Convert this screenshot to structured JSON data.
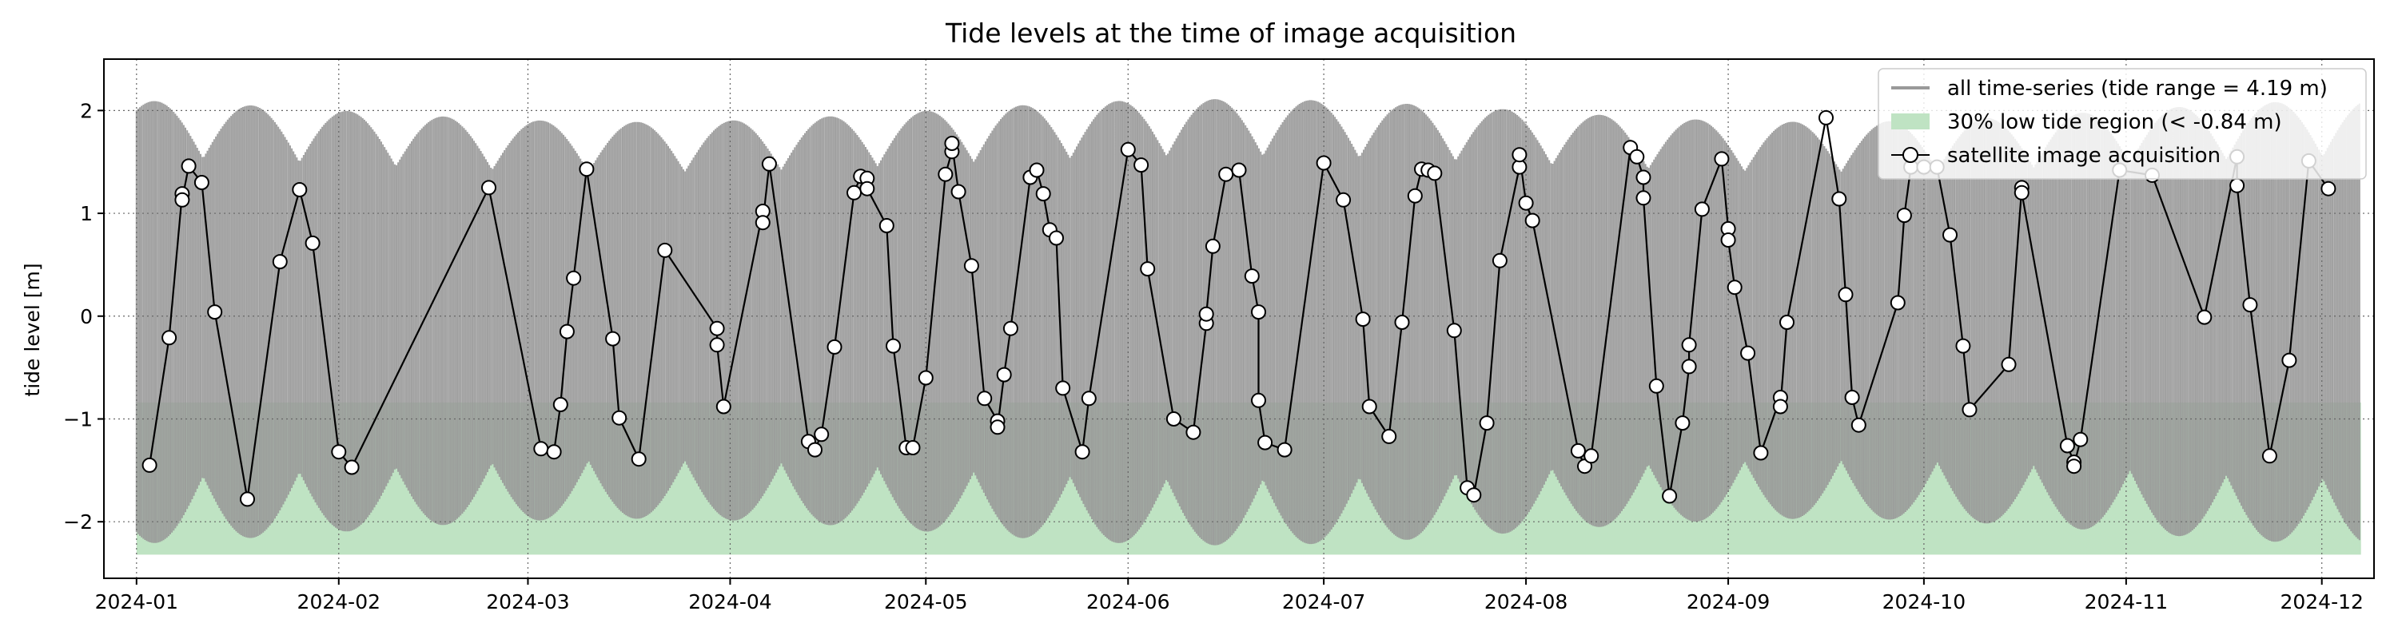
{
  "chart_data": {
    "type": "line",
    "title": "Tide levels at the time of image acquisition",
    "xlabel": "",
    "ylabel": "tide level [m]",
    "xlim": [
      "2023-12-27",
      "2024-12-09"
    ],
    "ylim": [
      -2.55,
      2.5
    ],
    "yticks": [
      -2,
      -1,
      0,
      1,
      2
    ],
    "xticks": [
      "2024-01",
      "2024-02",
      "2024-03",
      "2024-04",
      "2024-05",
      "2024-06",
      "2024-07",
      "2024-08",
      "2024-09",
      "2024-10",
      "2024-11",
      "2024-12"
    ],
    "grid": true,
    "grid_style": "dotted",
    "legend_position": "top-right",
    "legend": {
      "timeseries_label": "all time-series (tide range = 4.19 m)",
      "low_region_label": "30% low tide region (< -0.84 m)",
      "acquisition_label": "satellite image acquisition"
    },
    "low_tide_region": {
      "lower": -2.32,
      "upper": -0.84
    },
    "colors": {
      "timeseries": "#999999",
      "low_region": "#bfe3c3",
      "acquisition_line": "#000000",
      "marker_fill": "#ffffff"
    },
    "series": [
      {
        "name": "satellite image acquisition",
        "points": [
          [
            "2024-01-03",
            -1.45
          ],
          [
            "2024-01-06",
            -0.21
          ],
          [
            "2024-01-08",
            1.19
          ],
          [
            "2024-01-08",
            1.13
          ],
          [
            "2024-01-09",
            1.46
          ],
          [
            "2024-01-11",
            1.3
          ],
          [
            "2024-01-13",
            0.04
          ],
          [
            "2024-01-18",
            -1.78
          ],
          [
            "2024-01-23",
            0.53
          ],
          [
            "2024-01-26",
            1.23
          ],
          [
            "2024-01-28",
            0.71
          ],
          [
            "2024-02-01",
            -1.32
          ],
          [
            "2024-02-03",
            -1.47
          ],
          [
            "2024-02-24",
            1.25
          ],
          [
            "2024-03-03",
            -1.29
          ],
          [
            "2024-03-05",
            -1.32
          ],
          [
            "2024-03-06",
            -0.86
          ],
          [
            "2024-03-07",
            -0.15
          ],
          [
            "2024-03-08",
            0.37
          ],
          [
            "2024-03-10",
            1.43
          ],
          [
            "2024-03-14",
            -0.22
          ],
          [
            "2024-03-15",
            -0.99
          ],
          [
            "2024-03-18",
            -1.39
          ],
          [
            "2024-03-22",
            0.64
          ],
          [
            "2024-03-30",
            -0.12
          ],
          [
            "2024-03-30",
            -0.28
          ],
          [
            "2024-03-31",
            -0.88
          ],
          [
            "2024-04-06",
            1.02
          ],
          [
            "2024-04-06",
            0.91
          ],
          [
            "2024-04-07",
            1.48
          ],
          [
            "2024-04-13",
            -1.22
          ],
          [
            "2024-04-14",
            -1.3
          ],
          [
            "2024-04-15",
            -1.15
          ],
          [
            "2024-04-17",
            -0.3
          ],
          [
            "2024-04-20",
            1.2
          ],
          [
            "2024-04-21",
            1.36
          ],
          [
            "2024-04-22",
            1.34
          ],
          [
            "2024-04-22",
            1.24
          ],
          [
            "2024-04-25",
            0.88
          ],
          [
            "2024-04-26",
            -0.29
          ],
          [
            "2024-04-28",
            -1.28
          ],
          [
            "2024-04-29",
            -1.28
          ],
          [
            "2024-05-01",
            -0.6
          ],
          [
            "2024-05-04",
            1.38
          ],
          [
            "2024-05-05",
            1.6
          ],
          [
            "2024-05-05",
            1.68
          ],
          [
            "2024-05-06",
            1.21
          ],
          [
            "2024-05-08",
            0.49
          ],
          [
            "2024-05-10",
            -0.8
          ],
          [
            "2024-05-12",
            -1.02
          ],
          [
            "2024-05-12",
            -1.08
          ],
          [
            "2024-05-13",
            -0.57
          ],
          [
            "2024-05-14",
            -0.12
          ],
          [
            "2024-05-17",
            1.35
          ],
          [
            "2024-05-18",
            1.42
          ],
          [
            "2024-05-19",
            1.19
          ],
          [
            "2024-05-20",
            0.84
          ],
          [
            "2024-05-21",
            0.76
          ],
          [
            "2024-05-22",
            -0.7
          ],
          [
            "2024-05-25",
            -1.32
          ],
          [
            "2024-05-26",
            -0.8
          ],
          [
            "2024-06-01",
            1.62
          ],
          [
            "2024-06-03",
            1.47
          ],
          [
            "2024-06-04",
            0.46
          ],
          [
            "2024-06-08",
            -1.0
          ],
          [
            "2024-06-11",
            -1.13
          ],
          [
            "2024-06-13",
            -0.07
          ],
          [
            "2024-06-13",
            0.02
          ],
          [
            "2024-06-14",
            0.68
          ],
          [
            "2024-06-16",
            1.38
          ],
          [
            "2024-06-18",
            1.42
          ],
          [
            "2024-06-20",
            0.39
          ],
          [
            "2024-06-21",
            0.04
          ],
          [
            "2024-06-21",
            -0.82
          ],
          [
            "2024-06-22",
            -1.23
          ],
          [
            "2024-06-25",
            -1.3
          ],
          [
            "2024-07-01",
            1.49
          ],
          [
            "2024-07-04",
            1.13
          ],
          [
            "2024-07-07",
            -0.03
          ],
          [
            "2024-07-08",
            -0.88
          ],
          [
            "2024-07-11",
            -1.17
          ],
          [
            "2024-07-13",
            -0.06
          ],
          [
            "2024-07-15",
            1.17
          ],
          [
            "2024-07-16",
            1.43
          ],
          [
            "2024-07-17",
            1.42
          ],
          [
            "2024-07-18",
            1.39
          ],
          [
            "2024-07-21",
            -0.14
          ],
          [
            "2024-07-23",
            -1.67
          ],
          [
            "2024-07-24",
            -1.74
          ],
          [
            "2024-07-26",
            -1.04
          ],
          [
            "2024-07-28",
            0.54
          ],
          [
            "2024-07-31",
            1.45
          ],
          [
            "2024-07-31",
            1.57
          ],
          [
            "2024-08-01",
            1.1
          ],
          [
            "2024-08-02",
            0.93
          ],
          [
            "2024-08-09",
            -1.31
          ],
          [
            "2024-08-10",
            -1.46
          ],
          [
            "2024-08-11",
            -1.36
          ],
          [
            "2024-08-17",
            1.64
          ],
          [
            "2024-08-18",
            1.55
          ],
          [
            "2024-08-19",
            1.35
          ],
          [
            "2024-08-19",
            1.15
          ],
          [
            "2024-08-21",
            -0.68
          ],
          [
            "2024-08-23",
            -1.75
          ],
          [
            "2024-08-25",
            -1.04
          ],
          [
            "2024-08-26",
            -0.49
          ],
          [
            "2024-08-26",
            -0.28
          ],
          [
            "2024-08-28",
            1.04
          ],
          [
            "2024-08-31",
            1.53
          ],
          [
            "2024-09-01",
            0.85
          ],
          [
            "2024-09-01",
            0.74
          ],
          [
            "2024-09-02",
            0.28
          ],
          [
            "2024-09-04",
            -0.36
          ],
          [
            "2024-09-06",
            -1.33
          ],
          [
            "2024-09-09",
            -0.79
          ],
          [
            "2024-09-09",
            -0.88
          ],
          [
            "2024-09-10",
            -0.06
          ],
          [
            "2024-09-16",
            1.93
          ],
          [
            "2024-09-18",
            1.14
          ],
          [
            "2024-09-19",
            0.21
          ],
          [
            "2024-09-20",
            -0.79
          ],
          [
            "2024-09-21",
            -1.06
          ],
          [
            "2024-09-27",
            0.13
          ],
          [
            "2024-09-28",
            0.98
          ],
          [
            "2024-09-29",
            1.45
          ],
          [
            "2024-10-01",
            1.45
          ],
          [
            "2024-10-03",
            1.45
          ],
          [
            "2024-10-05",
            0.79
          ],
          [
            "2024-10-07",
            -0.29
          ],
          [
            "2024-10-08",
            -0.91
          ],
          [
            "2024-10-14",
            -0.47
          ],
          [
            "2024-10-16",
            1.25
          ],
          [
            "2024-10-16",
            1.2
          ],
          [
            "2024-10-23",
            -1.26
          ],
          [
            "2024-10-24",
            -1.42
          ],
          [
            "2024-10-24",
            -1.46
          ],
          [
            "2024-10-25",
            -1.2
          ],
          [
            "2024-10-31",
            1.42
          ],
          [
            "2024-11-05",
            1.37
          ],
          [
            "2024-11-13",
            -0.01
          ],
          [
            "2024-11-18",
            1.55
          ],
          [
            "2024-11-18",
            1.27
          ],
          [
            "2024-11-20",
            0.11
          ],
          [
            "2024-11-23",
            -1.36
          ],
          [
            "2024-11-26",
            -0.43
          ],
          [
            "2024-11-29",
            1.51
          ],
          [
            "2024-12-02",
            1.24
          ]
        ]
      }
    ]
  }
}
